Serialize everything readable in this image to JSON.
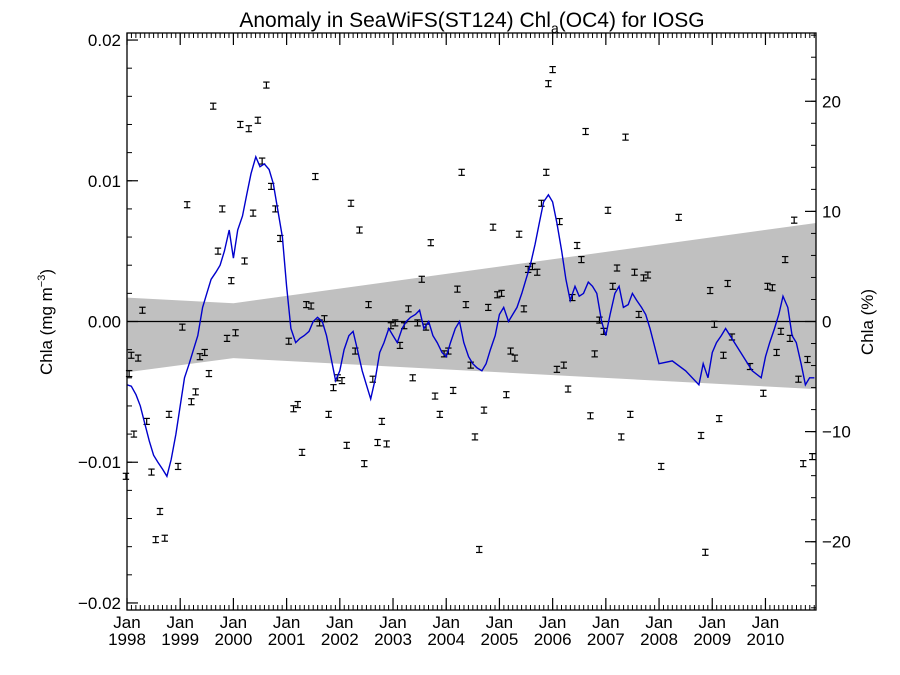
{
  "chart_data": {
    "type": "scatter",
    "title_main": "Anomaly in SeaWiFS(ST124) Chl",
    "title_sub": "a",
    "title_tail": "(OC4) for IOSG",
    "ylabel_left_main": "Chla (mg m",
    "ylabel_left_sup": "−3",
    "ylabel_left_tail": ")",
    "ylabel_right": "Chla (%)",
    "x_range": [
      1998.0,
      2010.95
    ],
    "ylim_left": [
      -0.0205,
      0.0205
    ],
    "ylim_right": [
      -26.2,
      26.2
    ],
    "left_ticks": [
      "0.02",
      "0.01",
      "0.00",
      "−0.01",
      "−0.02"
    ],
    "left_tick_values": [
      0.02,
      0.01,
      0.0,
      -0.01,
      -0.02
    ],
    "right_ticks": [
      "20",
      "10",
      "0",
      "−10",
      "−20"
    ],
    "right_tick_values": [
      20,
      10,
      0,
      -10,
      -20
    ],
    "x_ticks": [
      {
        "month": "Jan",
        "year": "1998",
        "x": 1998
      },
      {
        "month": "Jan",
        "year": "1999",
        "x": 1999
      },
      {
        "month": "Jan",
        "year": "2000",
        "x": 2000
      },
      {
        "month": "Jan",
        "year": "2001",
        "x": 2001
      },
      {
        "month": "Jan",
        "year": "2002",
        "x": 2002
      },
      {
        "month": "Jan",
        "year": "2003",
        "x": 2003
      },
      {
        "month": "Jan",
        "year": "2004",
        "x": 2004
      },
      {
        "month": "Jan",
        "year": "2005",
        "x": 2005
      },
      {
        "month": "Jan",
        "year": "2006",
        "x": 2006
      },
      {
        "month": "Jan",
        "year": "2007",
        "x": 2007
      },
      {
        "month": "Jan",
        "year": "2008",
        "x": 2008
      },
      {
        "month": "Jan",
        "year": "2009",
        "x": 2009
      },
      {
        "month": "Jan",
        "year": "2010",
        "x": 2010
      }
    ],
    "grid": false,
    "colors": {
      "running_mean": "#0000cc",
      "trend_band": "#c0c0c0",
      "points": "#000000"
    },
    "trend_band": {
      "x": [
        1998.0,
        2000.0,
        2010.95
      ],
      "upper": [
        0.0017,
        0.0013,
        0.007
      ],
      "lower": [
        -0.0036,
        -0.0026,
        -0.0048
      ]
    },
    "monthly_anomalies": [
      {
        "x": 1997.98,
        "y": -0.011
      },
      {
        "x": 1998.04,
        "y": -0.0037
      },
      {
        "x": 1998.08,
        "y": -0.0024
      },
      {
        "x": 1998.13,
        "y": -0.008
      },
      {
        "x": 1998.21,
        "y": -0.0026
      },
      {
        "x": 1998.29,
        "y": 0.0008
      },
      {
        "x": 1998.37,
        "y": -0.0071
      },
      {
        "x": 1998.46,
        "y": -0.0107
      },
      {
        "x": 1998.54,
        "y": -0.0155
      },
      {
        "x": 1998.62,
        "y": -0.0135
      },
      {
        "x": 1998.71,
        "y": -0.0154
      },
      {
        "x": 1998.79,
        "y": -0.0066
      },
      {
        "x": 1998.96,
        "y": -0.0103
      },
      {
        "x": 1999.04,
        "y": -0.0004
      },
      {
        "x": 1999.13,
        "y": 0.0083
      },
      {
        "x": 1999.21,
        "y": -0.0057
      },
      {
        "x": 1999.29,
        "y": -0.005
      },
      {
        "x": 1999.37,
        "y": -0.0025
      },
      {
        "x": 1999.46,
        "y": -0.0022
      },
      {
        "x": 1999.54,
        "y": -0.0037
      },
      {
        "x": 1999.62,
        "y": 0.0153
      },
      {
        "x": 1999.71,
        "y": 0.005
      },
      {
        "x": 1999.79,
        "y": 0.008
      },
      {
        "x": 1999.88,
        "y": -0.0012
      },
      {
        "x": 1999.96,
        "y": 0.0029
      },
      {
        "x": 2000.04,
        "y": -0.0008
      },
      {
        "x": 2000.13,
        "y": 0.014
      },
      {
        "x": 2000.21,
        "y": 0.0043
      },
      {
        "x": 2000.29,
        "y": 0.0137
      },
      {
        "x": 2000.37,
        "y": 0.0077
      },
      {
        "x": 2000.46,
        "y": 0.0143
      },
      {
        "x": 2000.54,
        "y": 0.0114
      },
      {
        "x": 2000.62,
        "y": 0.0168
      },
      {
        "x": 2000.71,
        "y": 0.0096
      },
      {
        "x": 2000.79,
        "y": 0.008
      },
      {
        "x": 2000.88,
        "y": 0.0059
      },
      {
        "x": 2001.04,
        "y": -0.0014
      },
      {
        "x": 2001.13,
        "y": -0.0062
      },
      {
        "x": 2001.21,
        "y": -0.0059
      },
      {
        "x": 2001.29,
        "y": -0.0093
      },
      {
        "x": 2001.37,
        "y": 0.0012
      },
      {
        "x": 2001.46,
        "y": 0.0011
      },
      {
        "x": 2001.54,
        "y": 0.0103
      },
      {
        "x": 2001.62,
        "y": -0.0001
      },
      {
        "x": 2001.71,
        "y": 0.0002
      },
      {
        "x": 2001.79,
        "y": -0.0066
      },
      {
        "x": 2001.88,
        "y": -0.0047
      },
      {
        "x": 2001.96,
        "y": -0.004
      },
      {
        "x": 2002.04,
        "y": -0.0042
      },
      {
        "x": 2002.13,
        "y": -0.0088
      },
      {
        "x": 2002.21,
        "y": 0.0084
      },
      {
        "x": 2002.29,
        "y": -0.0021
      },
      {
        "x": 2002.37,
        "y": 0.0065
      },
      {
        "x": 2002.46,
        "y": -0.0101
      },
      {
        "x": 2002.54,
        "y": 0.0012
      },
      {
        "x": 2002.62,
        "y": -0.0041
      },
      {
        "x": 2002.71,
        "y": -0.0086
      },
      {
        "x": 2002.79,
        "y": -0.0071
      },
      {
        "x": 2002.88,
        "y": -0.0087
      },
      {
        "x": 2002.96,
        "y": -0.0003
      },
      {
        "x": 2003.04,
        "y": -0.0001
      },
      {
        "x": 2003.13,
        "y": -0.0017
      },
      {
        "x": 2003.21,
        "y": -0.0003
      },
      {
        "x": 2003.29,
        "y": 0.0009
      },
      {
        "x": 2003.37,
        "y": -0.004
      },
      {
        "x": 2003.46,
        "y": -0.0001
      },
      {
        "x": 2003.54,
        "y": 0.003
      },
      {
        "x": 2003.62,
        "y": -0.0004
      },
      {
        "x": 2003.71,
        "y": 0.0056
      },
      {
        "x": 2003.79,
        "y": -0.0053
      },
      {
        "x": 2003.88,
        "y": -0.0066
      },
      {
        "x": 2003.96,
        "y": -0.0023
      },
      {
        "x": 2004.04,
        "y": -0.0021
      },
      {
        "x": 2004.13,
        "y": -0.0049
      },
      {
        "x": 2004.21,
        "y": 0.0023
      },
      {
        "x": 2004.29,
        "y": 0.0106
      },
      {
        "x": 2004.37,
        "y": 0.0012
      },
      {
        "x": 2004.46,
        "y": -0.0031
      },
      {
        "x": 2004.54,
        "y": -0.0082
      },
      {
        "x": 2004.62,
        "y": -0.0162
      },
      {
        "x": 2004.71,
        "y": -0.0063
      },
      {
        "x": 2004.79,
        "y": 0.001
      },
      {
        "x": 2004.88,
        "y": 0.0067
      },
      {
        "x": 2004.96,
        "y": 0.0019
      },
      {
        "x": 2005.04,
        "y": 0.002
      },
      {
        "x": 2005.13,
        "y": -0.0052
      },
      {
        "x": 2005.21,
        "y": -0.0021
      },
      {
        "x": 2005.29,
        "y": -0.0026
      },
      {
        "x": 2005.37,
        "y": 0.0062
      },
      {
        "x": 2005.46,
        "y": 0.0009
      },
      {
        "x": 2005.54,
        "y": 0.0037
      },
      {
        "x": 2005.62,
        "y": 0.0039
      },
      {
        "x": 2005.71,
        "y": 0.0035
      },
      {
        "x": 2005.79,
        "y": 0.0084
      },
      {
        "x": 2005.88,
        "y": 0.0106
      },
      {
        "x": 2005.92,
        "y": 0.0169
      },
      {
        "x": 2006.0,
        "y": 0.0179
      },
      {
        "x": 2006.08,
        "y": -0.0034
      },
      {
        "x": 2006.13,
        "y": 0.0071
      },
      {
        "x": 2006.21,
        "y": -0.0031
      },
      {
        "x": 2006.29,
        "y": -0.0048
      },
      {
        "x": 2006.37,
        "y": 0.0017
      },
      {
        "x": 2006.46,
        "y": 0.0054
      },
      {
        "x": 2006.54,
        "y": 0.0044
      },
      {
        "x": 2006.62,
        "y": 0.0135
      },
      {
        "x": 2006.71,
        "y": -0.0067
      },
      {
        "x": 2006.79,
        "y": -0.0023
      },
      {
        "x": 2006.88,
        "y": 0.0001
      },
      {
        "x": 2006.96,
        "y": -0.0007
      },
      {
        "x": 2007.04,
        "y": 0.0079
      },
      {
        "x": 2007.13,
        "y": 0.0025
      },
      {
        "x": 2007.21,
        "y": 0.0038
      },
      {
        "x": 2007.29,
        "y": -0.0082
      },
      {
        "x": 2007.37,
        "y": 0.0131
      },
      {
        "x": 2007.46,
        "y": -0.0066
      },
      {
        "x": 2007.54,
        "y": 0.0035
      },
      {
        "x": 2007.62,
        "y": 0.0005
      },
      {
        "x": 2007.71,
        "y": 0.0031
      },
      {
        "x": 2007.79,
        "y": 0.0033
      },
      {
        "x": 2008.04,
        "y": -0.0103
      },
      {
        "x": 2008.37,
        "y": 0.0074
      },
      {
        "x": 2008.79,
        "y": -0.0081
      },
      {
        "x": 2008.87,
        "y": -0.0164
      },
      {
        "x": 2008.96,
        "y": 0.0022
      },
      {
        "x": 2009.04,
        "y": -0.0002
      },
      {
        "x": 2009.13,
        "y": -0.0069
      },
      {
        "x": 2009.21,
        "y": -0.0024
      },
      {
        "x": 2009.29,
        "y": 0.0027
      },
      {
        "x": 2009.37,
        "y": -0.0011
      },
      {
        "x": 2009.71,
        "y": -0.0032
      },
      {
        "x": 2009.96,
        "y": -0.0051
      },
      {
        "x": 2010.04,
        "y": 0.0025
      },
      {
        "x": 2010.13,
        "y": 0.0024
      },
      {
        "x": 2010.21,
        "y": -0.0022
      },
      {
        "x": 2010.29,
        "y": -0.0007
      },
      {
        "x": 2010.37,
        "y": 0.0044
      },
      {
        "x": 2010.46,
        "y": -0.0012
      },
      {
        "x": 2010.54,
        "y": 0.0072
      },
      {
        "x": 2010.62,
        "y": -0.0041
      },
      {
        "x": 2010.71,
        "y": -0.0101
      },
      {
        "x": 2010.79,
        "y": -0.0027
      },
      {
        "x": 2010.88,
        "y": -0.0096
      }
    ],
    "running_mean": {
      "x": [
        1998.0,
        1998.08,
        1998.17,
        1998.25,
        1998.33,
        1998.42,
        1998.5,
        1998.58,
        1998.67,
        1998.75,
        1998.83,
        1998.92,
        1999.0,
        1999.08,
        1999.17,
        1999.25,
        1999.33,
        1999.42,
        1999.5,
        1999.58,
        1999.67,
        1999.75,
        1999.83,
        1999.92,
        2000.0,
        2000.08,
        2000.17,
        2000.25,
        2000.33,
        2000.42,
        2000.5,
        2000.58,
        2000.67,
        2000.75,
        2000.83,
        2000.92,
        2001.0,
        2001.08,
        2001.17,
        2001.25,
        2001.33,
        2001.42,
        2001.5,
        2001.58,
        2001.67,
        2001.75,
        2001.83,
        2001.92,
        2002.0,
        2002.08,
        2002.17,
        2002.25,
        2002.33,
        2002.42,
        2002.5,
        2002.58,
        2002.67,
        2002.75,
        2002.83,
        2002.92,
        2003.0,
        2003.08,
        2003.17,
        2003.25,
        2003.33,
        2003.42,
        2003.5,
        2003.58,
        2003.67,
        2003.75,
        2003.83,
        2003.92,
        2004.0,
        2004.08,
        2004.17,
        2004.25,
        2004.33,
        2004.42,
        2004.5,
        2004.58,
        2004.67,
        2004.75,
        2004.83,
        2004.92,
        2005.0,
        2005.08,
        2005.17,
        2005.25,
        2005.33,
        2005.42,
        2005.5,
        2005.58,
        2005.67,
        2005.75,
        2005.83,
        2005.92,
        2006.0,
        2006.08,
        2006.17,
        2006.25,
        2006.33,
        2006.42,
        2006.5,
        2006.58,
        2006.67,
        2006.75,
        2006.83,
        2006.92,
        2007.0,
        2007.08,
        2007.17,
        2007.25,
        2007.33,
        2007.42,
        2007.5,
        2007.58,
        2007.67,
        2007.75,
        2007.83,
        2008.0,
        2008.25,
        2008.5,
        2008.75,
        2008.83,
        2008.92,
        2009.0,
        2009.08,
        2009.17,
        2009.25,
        2009.5,
        2009.75,
        2009.92,
        2010.0,
        2010.08,
        2010.17,
        2010.25,
        2010.33,
        2010.42,
        2010.5,
        2010.58,
        2010.67,
        2010.75,
        2010.83,
        2010.92
      ],
      "y": [
        -0.0045,
        -0.0046,
        -0.0052,
        -0.006,
        -0.0072,
        -0.0085,
        -0.0095,
        -0.01,
        -0.0105,
        -0.011,
        -0.0098,
        -0.008,
        -0.006,
        -0.004,
        -0.003,
        -0.002,
        -0.001,
        0.001,
        0.002,
        0.003,
        0.0035,
        0.004,
        0.005,
        0.0065,
        0.0045,
        0.0065,
        0.0075,
        0.009,
        0.0105,
        0.0117,
        0.011,
        0.0112,
        0.0108,
        0.0098,
        0.008,
        0.006,
        0.0025,
        -0.0005,
        -0.0015,
        -0.0012,
        -0.001,
        -0.0007,
        0.0,
        0.0003,
        0.0,
        -0.001,
        -0.0025,
        -0.0042,
        -0.0035,
        -0.002,
        -0.001,
        -0.0007,
        -0.002,
        -0.0035,
        -0.0045,
        -0.0055,
        -0.004,
        -0.0022,
        -0.0015,
        -0.0005,
        -0.001,
        -0.0015,
        -0.0005,
        0.0,
        0.0003,
        0.0005,
        0.0008,
        -0.0005,
        0.0,
        -0.001,
        -0.0015,
        -0.0022,
        -0.0025,
        -0.0015,
        -0.0005,
        0.0,
        -0.0015,
        -0.0025,
        -0.003,
        -0.0033,
        -0.0035,
        -0.003,
        -0.002,
        -0.001,
        0.0005,
        0.001,
        0.0,
        0.0005,
        0.001,
        0.002,
        0.003,
        0.004,
        0.0055,
        0.007,
        0.0085,
        0.009,
        0.0085,
        0.007,
        0.005,
        0.003,
        0.0015,
        0.0025,
        0.0018,
        0.002,
        0.0028,
        0.0025,
        0.002,
        0.0,
        -0.001,
        0.0005,
        0.002,
        0.0025,
        0.001,
        0.0012,
        0.002,
        0.0015,
        0.001,
        0.0005,
        -0.0005,
        -0.003,
        -0.0028,
        -0.0035,
        -0.0045,
        -0.003,
        -0.004,
        -0.0022,
        -0.0015,
        -0.001,
        -0.0005,
        -0.002,
        -0.0035,
        -0.004,
        -0.0025,
        -0.0015,
        -0.0005,
        0.0005,
        0.0018,
        0.001,
        -0.001,
        -0.0015,
        -0.003,
        -0.0045,
        -0.004,
        -0.004
      ]
    }
  }
}
